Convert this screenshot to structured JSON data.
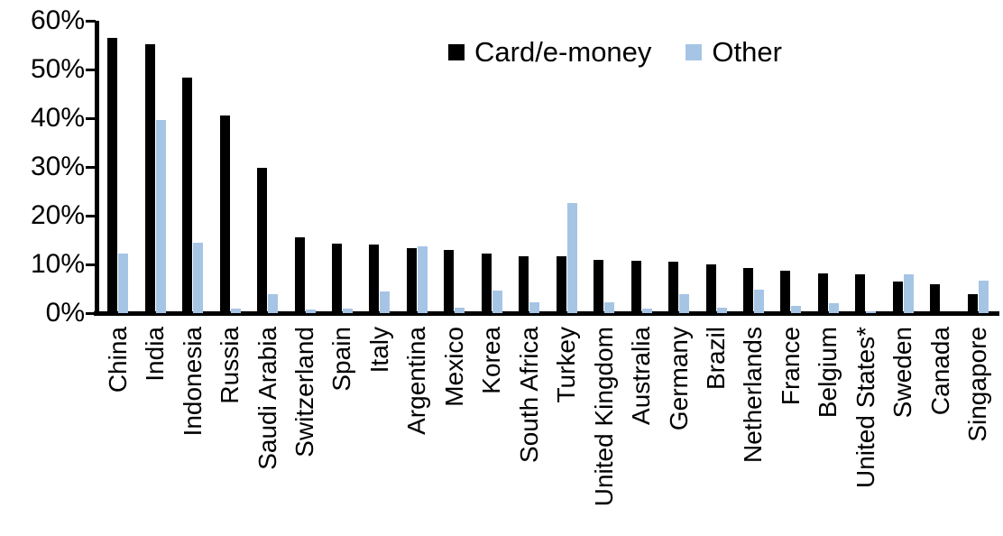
{
  "chart_data": {
    "type": "bar",
    "title": "",
    "xlabel": "",
    "ylabel": "",
    "ylim": [
      0,
      60
    ],
    "ytick_step": 10,
    "ytick_labels": [
      "0%",
      "10%",
      "20%",
      "30%",
      "40%",
      "50%",
      "60%"
    ],
    "grid": false,
    "legend_position": "top-center",
    "axis_color": "#000000",
    "categories": [
      "China",
      "India",
      "Indonesia",
      "Russia",
      "Saudi Arabia",
      "Switzerland",
      "Spain",
      "Italy",
      "Argentina",
      "Mexico",
      "Korea",
      "South Africa",
      "Turkey",
      "United Kingdom",
      "Australia",
      "Germany",
      "Brazil",
      "Netherlands",
      "France",
      "Belgium",
      "United States*",
      "Sweden",
      "Canada",
      "Singapore"
    ],
    "series": [
      {
        "name": "Card/e-money",
        "color": "#000000",
        "values": [
          56.4,
          55.1,
          48.4,
          40.6,
          29.8,
          15.6,
          14.2,
          14.1,
          13.3,
          12.9,
          12.2,
          11.7,
          11.6,
          11.0,
          10.8,
          10.6,
          10.0,
          9.2,
          8.7,
          8.2,
          7.9,
          6.4,
          5.9,
          3.9
        ]
      },
      {
        "name": "Other",
        "color": "#a6c5e5",
        "values": [
          12.2,
          39.7,
          14.4,
          0.9,
          3.9,
          0.7,
          0.9,
          4.5,
          13.7,
          1.2,
          4.6,
          2.3,
          22.5,
          2.2,
          1.0,
          3.9,
          1.2,
          4.8,
          1.4,
          2.0,
          0.3,
          8.0,
          0.0,
          6.6
        ]
      }
    ]
  }
}
